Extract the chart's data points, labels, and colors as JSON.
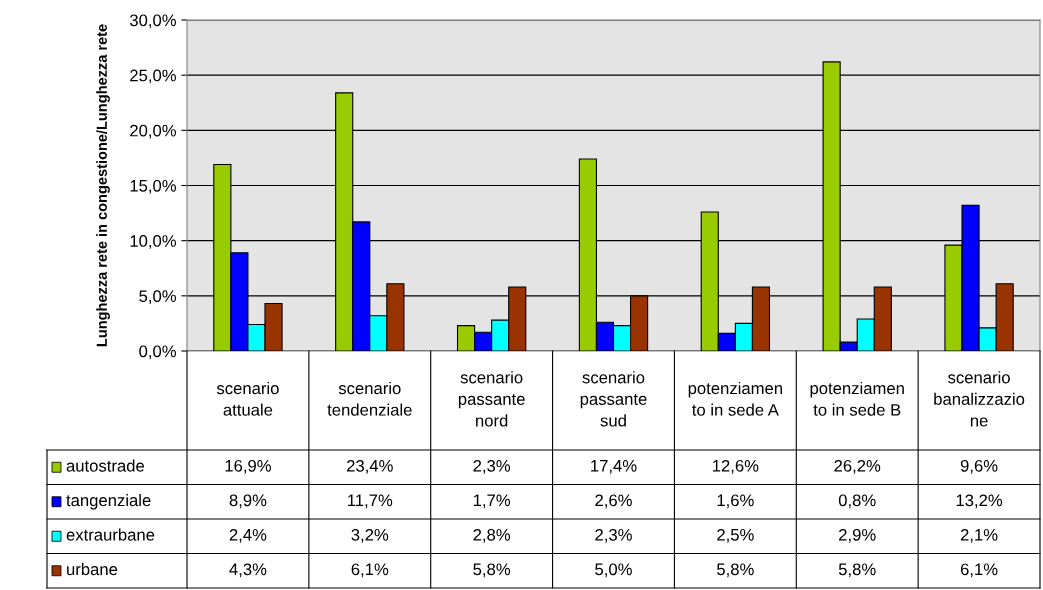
{
  "chart_data": {
    "type": "bar",
    "ylabel": "Lunghezza rete in congestione/Lunghezza rete",
    "categories": [
      "scenario\nattuale",
      "scenario\ntendenziale",
      "scenario\npassante\nnord",
      "scenario\npassante\nsud",
      "potenziamen\nto in sede A",
      "potenziamen\nto in sede B",
      "scenario\nbanalizzazio\nne"
    ],
    "series": [
      {
        "name": "autostrade",
        "color": "#99cc00",
        "values": [
          16.9,
          23.4,
          2.3,
          17.4,
          12.6,
          26.2,
          9.6
        ],
        "value_labels": [
          "16,9%",
          "23,4%",
          "2,3%",
          "17,4%",
          "12,6%",
          "26,2%",
          "9,6%"
        ]
      },
      {
        "name": "tangenziale",
        "color": "#0000ff",
        "values": [
          8.9,
          11.7,
          1.7,
          2.6,
          1.6,
          0.8,
          13.2
        ],
        "value_labels": [
          "8,9%",
          "11,7%",
          "1,7%",
          "2,6%",
          "1,6%",
          "0,8%",
          "13,2%"
        ]
      },
      {
        "name": "extraurbane",
        "color": "#00ffff",
        "values": [
          2.4,
          3.2,
          2.8,
          2.3,
          2.5,
          2.9,
          2.1
        ],
        "value_labels": [
          "2,4%",
          "3,2%",
          "2,8%",
          "2,3%",
          "2,5%",
          "2,9%",
          "2,1%"
        ]
      },
      {
        "name": "urbane",
        "color": "#993300",
        "values": [
          4.3,
          6.1,
          5.8,
          5.0,
          5.8,
          5.8,
          6.1
        ],
        "value_labels": [
          "4,3%",
          "6,1%",
          "5,8%",
          "5,0%",
          "5,8%",
          "5,8%",
          "6,1%"
        ]
      }
    ],
    "ylim": [
      0,
      30
    ],
    "yticks": [
      {
        "value": 0,
        "label": "0,0%"
      },
      {
        "value": 5,
        "label": "5,0%"
      },
      {
        "value": 10,
        "label": "10,0%"
      },
      {
        "value": 15,
        "label": "15,0%"
      },
      {
        "value": 20,
        "label": "20,0%"
      },
      {
        "value": 25,
        "label": "25,0%"
      },
      {
        "value": 30,
        "label": "30,0%"
      }
    ],
    "grid": "y",
    "legend": "bottom"
  }
}
